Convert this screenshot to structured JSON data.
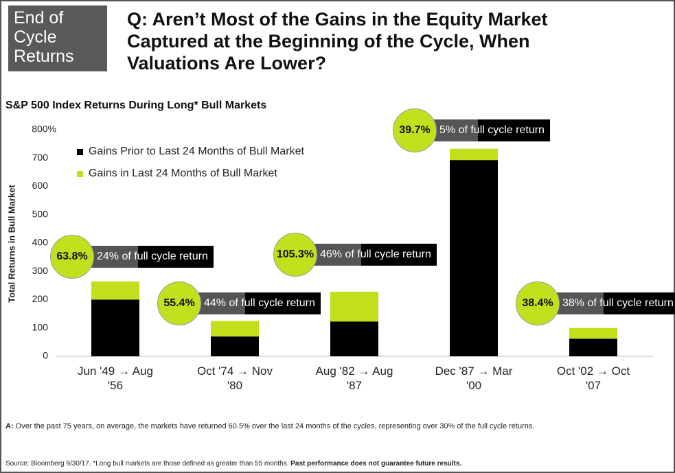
{
  "header": {
    "badge": "End of Cycle Returns",
    "title": "Q: Aren’t Most of the Gains in the Equity Market Captured at the Beginning of the Cycle, When Valuations Are Lower?"
  },
  "chart_data": {
    "type": "stacked_bar",
    "title": "S&P 500 Index Returns During Long* Bull Markets",
    "y_label": "Total Returns in Bull Market",
    "categories": [
      "Jun '49 → Aug '56",
      "Oct '74 → Nov '80",
      "Aug '82 → Aug '87",
      "Dec '87 → Mar '00",
      "Oct '02 → Oct '07"
    ],
    "series": [
      {
        "name": "Gains Prior to Last 24 Months of Bull Market",
        "color": "#000000",
        "values": [
          200,
          70,
          123,
          693,
          62
        ]
      },
      {
        "name": "Gains in Last 24 Months of Bull Market",
        "color": "#c3df1b",
        "values": [
          64,
          55,
          105,
          40,
          38
        ]
      }
    ],
    "ylim": [
      0,
      800
    ],
    "yticks": [
      0,
      100,
      200,
      300,
      400,
      500,
      600,
      700,
      {
        "value": 800,
        "label": "800%"
      }
    ],
    "annotations": [
      {
        "gain": "63.8%",
        "share": "24% of full cycle return"
      },
      {
        "gain": "55.4%",
        "share": "44% of full cycle return"
      },
      {
        "gain": "105.3%",
        "share": "46% of full cycle return"
      },
      {
        "gain": "39.7%",
        "share": "5% of full cycle return"
      },
      {
        "gain": "38.4%",
        "share": "38% of full cycle return"
      }
    ]
  },
  "footer": {
    "prefix": "A:",
    "note": "Over the past 75 years, on average, the markets have returned 60.5% over the last 24 months of the cycles, representing over 30% of the full cycle returns.",
    "source": "Source: Bloomberg 9/30/17. *Long bull markets are those defined as greater than 55 months.",
    "disclaimer": "Past performance does not guarantee future results."
  }
}
